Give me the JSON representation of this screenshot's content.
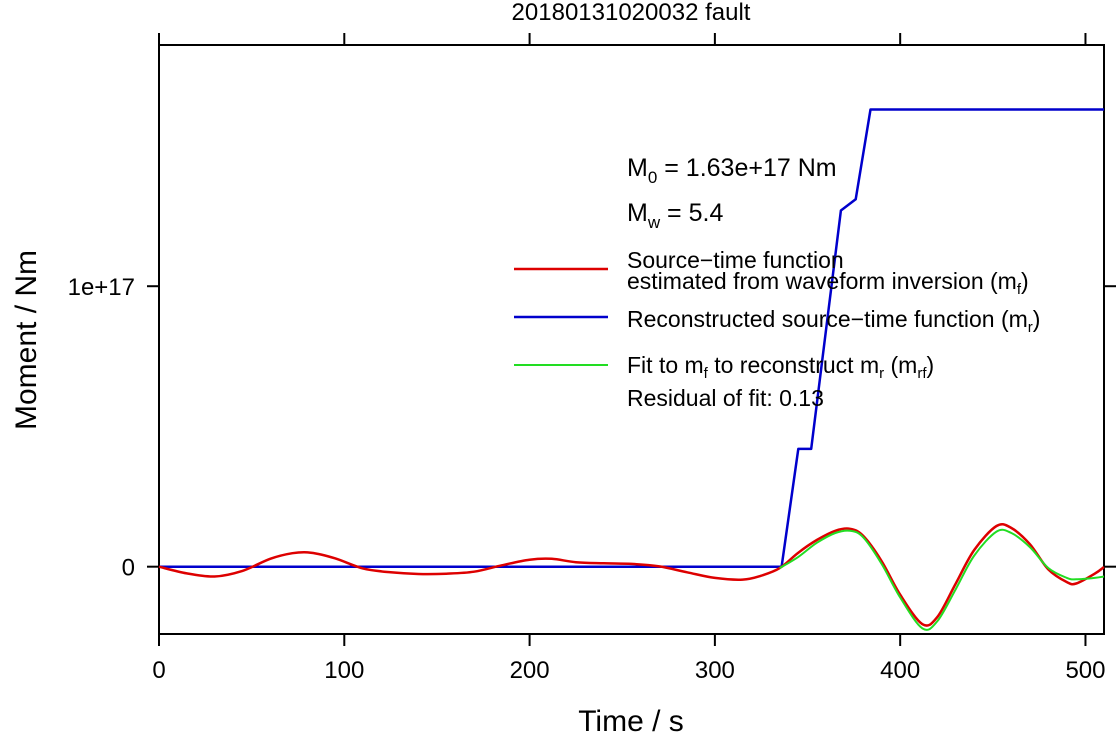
{
  "chart_data": {
    "type": "line",
    "title": "20180131020032 fault",
    "xlabel": "Time / s",
    "ylabel": "Moment / Nm",
    "xlim": [
      0,
      510
    ],
    "ylim": [
      -2.4e+16,
      1.86e+17
    ],
    "x_ticks": [
      0,
      100,
      200,
      300,
      400,
      500
    ],
    "x_tick_labels": [
      "0",
      "100",
      "200",
      "300",
      "400",
      "500"
    ],
    "y_ticks": [
      0,
      1e+17
    ],
    "y_tick_labels": [
      "0",
      "1e+17"
    ],
    "grid": false,
    "legend_position": "right",
    "series": [
      {
        "name": "Source−time function estimated from waveform inversion (mf)",
        "color": "#dd0000",
        "x": [
          0,
          15,
          30,
          45,
          60,
          72,
          82,
          95,
          110,
          125,
          140,
          155,
          170,
          185,
          200,
          212,
          225,
          240,
          255,
          270,
          285,
          300,
          315,
          325,
          335,
          345,
          355,
          365,
          373,
          380,
          390,
          400,
          412,
          420,
          430,
          440,
          452,
          460,
          470,
          480,
          490,
          495,
          505,
          510
        ],
        "y": [
          0,
          -2400000000000000.0,
          -3500000000000000.0,
          -1500000000000000.0,
          2800000000000000.0,
          4800000000000000.0,
          5000000000000000.0,
          3000000000000000.0,
          -600000000000000.0,
          -2000000000000000.0,
          -2600000000000000.0,
          -2500000000000000.0,
          -1800000000000000.0,
          500000000000000.0,
          2500000000000000.0,
          2800000000000000.0,
          1600000000000000.0,
          1200000000000000.0,
          1000000000000000.0,
          100000000000000.0,
          -2000000000000000.0,
          -4000000000000000.0,
          -4600000000000000.0,
          -3200000000000000.0,
          -500000000000000.0,
          5000000000000000.0,
          9500000000000000.0,
          1.28e+16,
          1.35e+16,
          1.1e+16,
          2000000000000000.0,
          -1e+16,
          -2.05e+16,
          -1.8e+16,
          -6000000000000000.0,
          6000000000000000.0,
          1.45e+16,
          1.38e+16,
          8000000000000000.0,
          -1000000000000000.0,
          -5500000000000000.0,
          -6000000000000000.0,
          -2500000000000000.0,
          -100000000000000.0
        ]
      },
      {
        "name": "Reconstructed source−time function (mr)",
        "color": "#0000cc",
        "x": [
          0,
          336,
          345,
          352,
          368,
          376,
          384,
          510
        ],
        "y": [
          0,
          0,
          4.2e+16,
          4.2e+16,
          1.27e+17,
          1.31e+17,
          1.63e+17,
          1.63e+17
        ]
      },
      {
        "name": "Fit to mf to reconstruct mr (mrf)",
        "color": "#22dd22",
        "x": [
          335,
          345,
          355,
          365,
          373,
          380,
          390,
          400,
          412,
          420,
          430,
          440,
          452,
          460,
          470,
          480,
          490,
          495,
          505,
          510
        ],
        "y": [
          -500000000000000.0,
          3500000000000000.0,
          8500000000000000.0,
          1.2e+16,
          1.28e+16,
          1.05e+16,
          1000000000000000.0,
          -1.1e+16,
          -2.2e+16,
          -1.95e+16,
          -8000000000000000.0,
          4000000000000000.0,
          1.25e+16,
          1.2e+16,
          7000000000000000.0,
          -500000000000000.0,
          -4000000000000000.0,
          -4500000000000000.0,
          -4000000000000000.0,
          -3500000000000000.0
        ]
      }
    ],
    "annotations": {
      "m0": {
        "symbol": "M",
        "sub": "0",
        "value": " = 1.63e+17 Nm"
      },
      "mw": {
        "symbol": "M",
        "sub": "w",
        "value": " = 5.4"
      },
      "legend1_line1": "Source−time function",
      "legend1_line2": "estimated from waveform inversion (m",
      "legend1_sub": "f",
      "legend1_end": ")",
      "legend2_text": "Reconstructed source−time function (m",
      "legend2_sub": "r",
      "legend2_end": ")",
      "legend3_a": "Fit to m",
      "legend3_sub1": "f",
      "legend3_b": " to reconstruct m",
      "legend3_sub2": "r",
      "legend3_c": " (m",
      "legend3_sub3": "rf",
      "legend3_end": ")",
      "residual": "Residual of fit: 0.13"
    }
  }
}
